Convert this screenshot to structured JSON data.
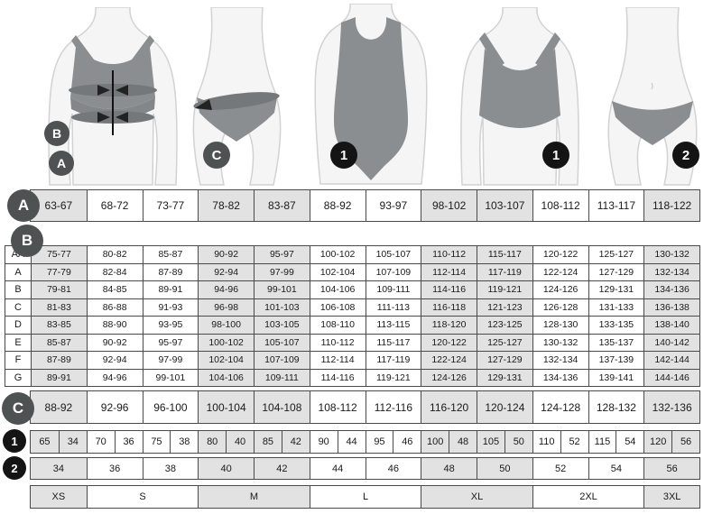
{
  "colors": {
    "border": "#4a4a4a",
    "cell_shaded": "#e2e2e2",
    "cell_white": "#ffffff",
    "badge_gray": "#4f5253",
    "badge_black": "#141414",
    "garment": "#8b8e90",
    "band": "#75787a",
    "body_fill": "#f5f5f5",
    "body_stroke": "#d2d2d2"
  },
  "illustrations": [
    {
      "name": "bra-measurement-diagram",
      "badges": [
        "B",
        "A"
      ]
    },
    {
      "name": "panty-hip-measurement-diagram",
      "badges": [
        "C"
      ]
    },
    {
      "name": "bodysuit-figure",
      "badges": [
        "1"
      ]
    },
    {
      "name": "bra-figure",
      "badges": [
        "1"
      ]
    },
    {
      "name": "panty-figure",
      "badges": [
        "2"
      ]
    }
  ],
  "badges": {
    "measure_b": "B",
    "measure_a": "A",
    "measure_c": "C",
    "bodysuit_1": "1",
    "bra_1": "1",
    "panty_2": "2"
  },
  "row_labels": {
    "a": "A",
    "b": "B",
    "c": "C",
    "one": "1",
    "two": "2"
  },
  "row_a": {
    "values": [
      "63-67",
      "68-72",
      "73-77",
      "78-82",
      "83-87",
      "88-92",
      "93-97",
      "98-102",
      "103-107",
      "108-112",
      "113-117",
      "118-122"
    ]
  },
  "section_b": {
    "rows": [
      {
        "label": "AA",
        "values": [
          "75-77",
          "80-82",
          "85-87",
          "90-92",
          "95-97",
          "100-102",
          "105-107",
          "110-112",
          "115-117",
          "120-122",
          "125-127",
          "130-132"
        ]
      },
      {
        "label": "A",
        "values": [
          "77-79",
          "82-84",
          "87-89",
          "92-94",
          "97-99",
          "102-104",
          "107-109",
          "112-114",
          "117-119",
          "122-124",
          "127-129",
          "132-134"
        ]
      },
      {
        "label": "B",
        "values": [
          "79-81",
          "84-85",
          "89-91",
          "94-96",
          "99-101",
          "104-106",
          "109-111",
          "114-116",
          "119-121",
          "124-126",
          "129-131",
          "134-136"
        ]
      },
      {
        "label": "C",
        "values": [
          "81-83",
          "86-88",
          "91-93",
          "96-98",
          "101-103",
          "106-108",
          "111-113",
          "116-118",
          "121-123",
          "126-128",
          "131-133",
          "136-138"
        ]
      },
      {
        "label": "D",
        "values": [
          "83-85",
          "88-90",
          "93-95",
          "98-100",
          "103-105",
          "108-110",
          "113-115",
          "118-120",
          "123-125",
          "128-130",
          "133-135",
          "138-140"
        ]
      },
      {
        "label": "E",
        "values": [
          "85-87",
          "90-92",
          "95-97",
          "100-102",
          "105-107",
          "110-112",
          "115-117",
          "120-122",
          "125-127",
          "130-132",
          "135-137",
          "140-142"
        ]
      },
      {
        "label": "F",
        "values": [
          "87-89",
          "92-94",
          "97-99",
          "102-104",
          "107-109",
          "112-114",
          "117-119",
          "122-124",
          "127-129",
          "132-134",
          "137-139",
          "142-144"
        ]
      },
      {
        "label": "G",
        "values": [
          "89-91",
          "94-96",
          "99-101",
          "104-106",
          "109-111",
          "114-116",
          "119-121",
          "124-126",
          "129-131",
          "134-136",
          "139-141",
          "144-146"
        ]
      }
    ]
  },
  "row_c": {
    "values": [
      "88-92",
      "92-96",
      "96-100",
      "100-104",
      "104-108",
      "108-112",
      "112-116",
      "116-120",
      "120-124",
      "124-128",
      "128-132",
      "132-136"
    ]
  },
  "row_1": {
    "values": [
      "65",
      "34",
      "70",
      "36",
      "75",
      "38",
      "80",
      "40",
      "85",
      "42",
      "90",
      "44",
      "95",
      "46",
      "100",
      "48",
      "105",
      "50",
      "110",
      "52",
      "115",
      "54",
      "120",
      "56"
    ]
  },
  "row_2": {
    "values": [
      "34",
      "36",
      "38",
      "40",
      "42",
      "44",
      "46",
      "48",
      "50",
      "52",
      "54",
      "56"
    ]
  },
  "sizes": {
    "values": [
      "XS",
      "S",
      "M",
      "L",
      "XL",
      "2XL",
      "3XL"
    ],
    "spans": [
      1,
      2,
      2,
      2,
      2,
      2,
      1
    ]
  },
  "patterns": {
    "cols12": [
      1,
      0,
      0,
      1,
      1,
      0,
      0,
      1,
      1,
      0,
      0,
      1
    ],
    "cols24": [
      1,
      1,
      0,
      0,
      0,
      0,
      1,
      1,
      1,
      1,
      0,
      0,
      0,
      0,
      1,
      1,
      1,
      1,
      0,
      0,
      0,
      0,
      1,
      1
    ],
    "sizes7": [
      1,
      0,
      1,
      0,
      1,
      0,
      1
    ]
  }
}
